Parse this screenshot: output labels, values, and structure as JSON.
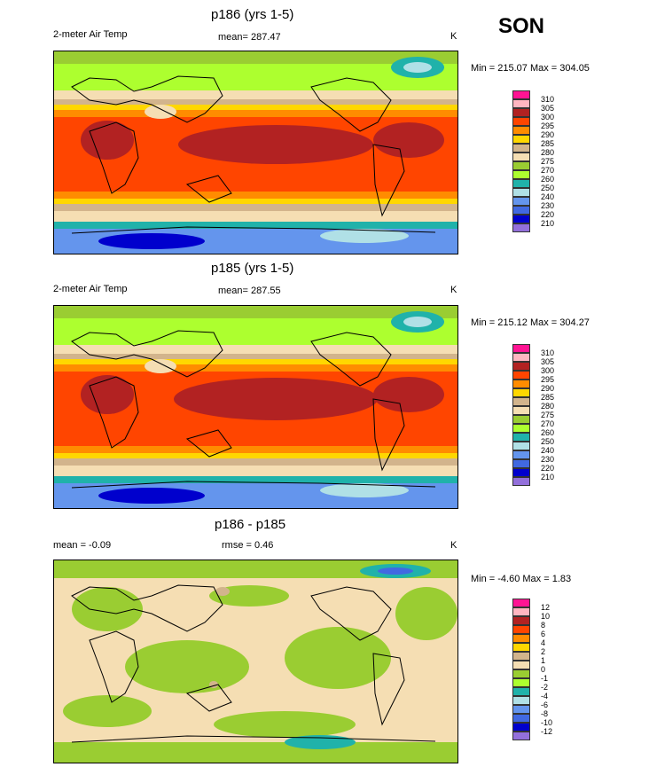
{
  "season": "SON",
  "panels": [
    {
      "title": "p186 (yrs 1-5)",
      "left_label": "2-meter Air Temp",
      "center_label": "mean= 287.47",
      "units": "K",
      "minmax": "Min = 215.07 Max = 304.05",
      "levels": [
        "310",
        "305",
        "300",
        "295",
        "290",
        "285",
        "280",
        "275",
        "270",
        "260",
        "250",
        "240",
        "230",
        "220",
        "210"
      ],
      "colors": [
        "#ff1493",
        "#ffb6c1",
        "#b22222",
        "#ff4500",
        "#ff8c00",
        "#ffd700",
        "#d2b48c",
        "#f5deb3",
        "#9acd32",
        "#adff2f",
        "#20b2aa",
        "#b0e0e6",
        "#6495ed",
        "#4169e1",
        "#0000cd",
        "#9370db"
      ]
    },
    {
      "title": "p185 (yrs 1-5)",
      "left_label": "2-meter Air Temp",
      "center_label": "mean= 287.55",
      "units": "K",
      "minmax": "Min = 215.12 Max = 304.27",
      "levels": [
        "310",
        "305",
        "300",
        "295",
        "290",
        "285",
        "280",
        "275",
        "270",
        "260",
        "250",
        "240",
        "230",
        "220",
        "210"
      ],
      "colors": [
        "#ff1493",
        "#ffb6c1",
        "#b22222",
        "#ff4500",
        "#ff8c00",
        "#ffd700",
        "#d2b48c",
        "#f5deb3",
        "#9acd32",
        "#adff2f",
        "#20b2aa",
        "#b0e0e6",
        "#6495ed",
        "#4169e1",
        "#0000cd",
        "#9370db"
      ]
    },
    {
      "title": "p186 - p185",
      "left_label": "mean =  -0.09",
      "center_label": "rmse =   0.46",
      "units": "K",
      "minmax": "Min =  -4.60 Max =   1.83",
      "levels": [
        "12",
        "10",
        "8",
        "6",
        "4",
        "2",
        "1",
        "0",
        "-1",
        "-2",
        "-4",
        "-6",
        "-8",
        "-10",
        "-12"
      ],
      "colors": [
        "#ff1493",
        "#ffb6c1",
        "#b22222",
        "#ff4500",
        "#ff8c00",
        "#ffd700",
        "#d2b48c",
        "#f5deb3",
        "#9acd32",
        "#adff2f",
        "#20b2aa",
        "#b0e0e6",
        "#6495ed",
        "#4169e1",
        "#0000cd",
        "#9370db"
      ]
    }
  ]
}
